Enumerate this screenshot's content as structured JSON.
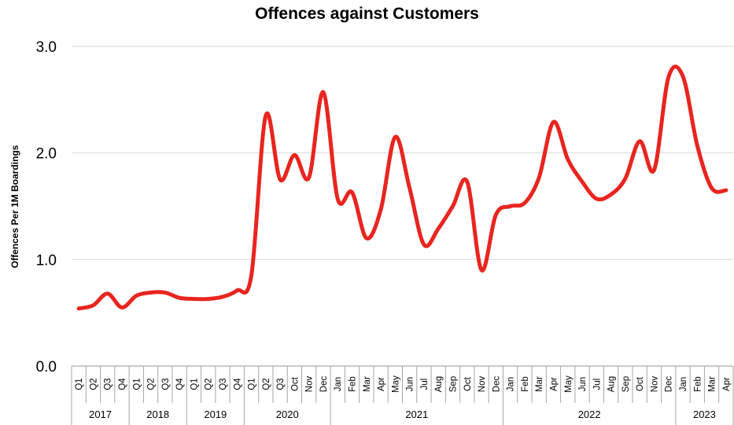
{
  "chart_data": {
    "type": "line",
    "title": "Offences against Customers",
    "ylabel": "Offences Per 1M Boardings",
    "xlabel": "",
    "ylim": [
      0,
      3
    ],
    "yticks": [
      "0.0",
      "1.0",
      "2.0",
      "3.0"
    ],
    "grid": true,
    "line_color": "#e8251f",
    "x": [
      "Q1",
      "Q2",
      "Q3",
      "Q4",
      "Q1",
      "Q2",
      "Q3",
      "Q4",
      "Q1",
      "Q2",
      "Q3",
      "Q4",
      "Q1",
      "Q2",
      "Q3",
      "Oct",
      "Nov",
      "Dec",
      "Jan",
      "Feb",
      "Mar",
      "Apr",
      "May",
      "Jun",
      "Jul",
      "Aug",
      "Sep",
      "Oct",
      "Nov",
      "Dec",
      "Jan",
      "Feb",
      "Mar",
      "Apr",
      "May",
      "Jun",
      "Jul",
      "Aug",
      "Sep",
      "Oct",
      "Nov",
      "Dec",
      "Jan",
      "Feb",
      "Mar",
      "Apr"
    ],
    "groups": [
      {
        "label": "2017",
        "count": 4
      },
      {
        "label": "2018",
        "count": 4
      },
      {
        "label": "2019",
        "count": 4
      },
      {
        "label": "2020",
        "count": 6
      },
      {
        "label": "2021",
        "count": 12
      },
      {
        "label": "2022",
        "count": 12
      },
      {
        "label": "2023",
        "count": 4
      }
    ],
    "values": [
      0.54,
      0.57,
      0.68,
      0.55,
      0.66,
      0.69,
      0.69,
      0.64,
      0.63,
      0.63,
      0.65,
      0.71,
      0.85,
      2.35,
      1.75,
      1.98,
      1.77,
      2.57,
      1.57,
      1.63,
      1.2,
      1.47,
      2.15,
      1.67,
      1.14,
      1.29,
      1.5,
      1.73,
      0.9,
      1.42,
      1.5,
      1.53,
      1.77,
      2.29,
      1.94,
      1.73,
      1.57,
      1.61,
      1.76,
      2.11,
      1.84,
      2.71,
      2.72,
      2.07,
      1.67,
      1.65
    ]
  }
}
